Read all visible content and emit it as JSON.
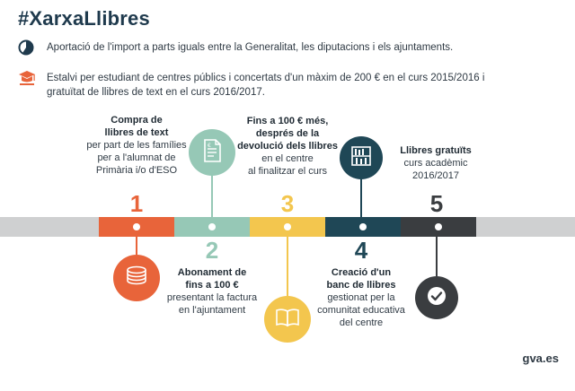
{
  "title": "#XarxaLlibres",
  "bullets": [
    {
      "icon": "pie-chart-icon",
      "text": "Aportació de l'import a parts iguals entre la Generalitat, les diputacions i els ajuntaments."
    },
    {
      "icon": "graduation-cap-icon",
      "text_line1": "Estalvi per estudiant de centres públics i concertats d'un màxim de 200 € en el curs 2015/2016 i",
      "text_line2": "gratuïtat de llibres de text en el curs 2016/2017."
    }
  ],
  "steps": [
    {
      "number": "1",
      "color": "#e8643a",
      "bold_lines": [
        "Compra de",
        "llibres de text"
      ],
      "lines": [
        "per part de les famílies",
        "per a l'alumnat de",
        "Primària i/o d'ESO"
      ],
      "icon": "coins-icon"
    },
    {
      "number": "2",
      "color": "#96c8b6",
      "bold_lines": [
        "Abonament de",
        "fins a 100 €"
      ],
      "lines": [
        "presentant la factura",
        "en l'ajuntament"
      ],
      "icon": "invoice-icon"
    },
    {
      "number": "3",
      "color": "#f3c64e",
      "bold_lines": [
        "Fins a 100 € més,",
        "després de la",
        "devolució dels llibres"
      ],
      "lines": [
        "en el centre",
        "al finalitzar el curs"
      ],
      "icon": "open-book-icon"
    },
    {
      "number": "4",
      "color": "#1f4756",
      "bold_lines": [
        "Creació d'un",
        "banc de llibres"
      ],
      "lines": [
        "gestionat per la",
        "comunitat educativa",
        "del centre"
      ],
      "icon": "bookshelf-icon"
    },
    {
      "number": "5",
      "color": "#3a3d40",
      "bold_lines": [
        "Llibres gratuïts"
      ],
      "lines": [
        "curs acadèmic",
        "2016/2017"
      ],
      "icon": "checkmark-icon"
    }
  ],
  "footer": "gva.es"
}
